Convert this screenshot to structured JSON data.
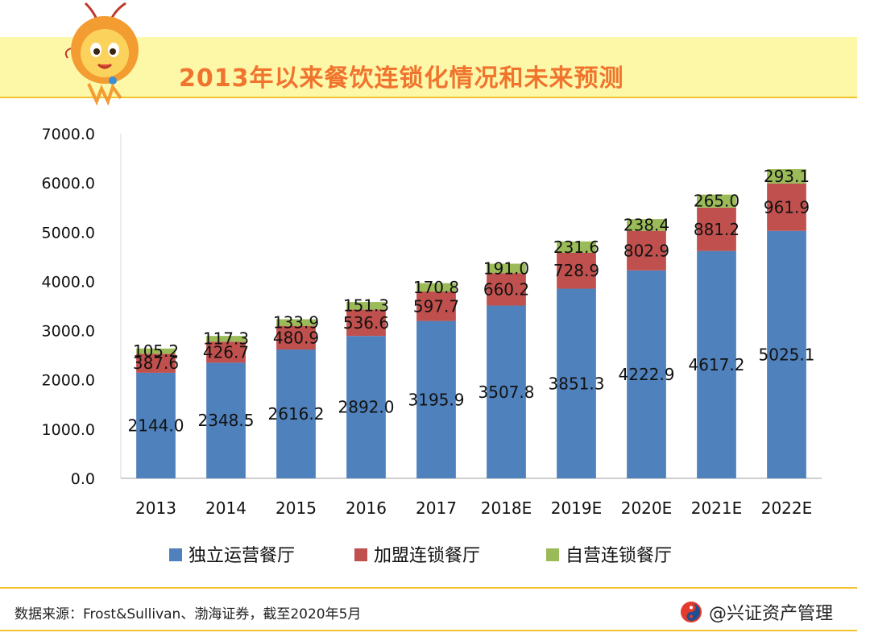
{
  "title": "2013年以来餐饮连锁化情况和未来预测",
  "source": "数据来源：Frost&Sullivan、渤海证券，截至2020年5月",
  "brand": "@兴证资产管理",
  "icons": {
    "mascot": "lion-mascot-icon",
    "brand_logo": "brand-logo-icon"
  },
  "colors": {
    "independent": "#4f81bd",
    "franchise": "#c0504d",
    "self_operated": "#9bbb59",
    "title": "#f0742e",
    "band": "#fdf7a8",
    "rule": "#f2c230"
  },
  "chart_data": {
    "type": "bar",
    "stacked": true,
    "title": "2013年以来餐饮连锁化情况和未来预测",
    "xlabel": "",
    "ylabel": "",
    "ylim": [
      0,
      7000
    ],
    "yticks": [
      "0.0",
      "1000.0",
      "2000.0",
      "3000.0",
      "4000.0",
      "5000.0",
      "6000.0",
      "7000.0"
    ],
    "categories": [
      "2013",
      "2014",
      "2015",
      "2016",
      "2017",
      "2018E",
      "2019E",
      "2020E",
      "2021E",
      "2022E"
    ],
    "legend_position": "bottom",
    "series": [
      {
        "name": "独立运营餐厅",
        "values": [
          2144.0,
          2348.5,
          2616.2,
          2892.0,
          3195.9,
          3507.8,
          3851.3,
          4222.9,
          4617.2,
          5025.1
        ],
        "labels": [
          "2144.0",
          "2348.5",
          "2616.2",
          "2892.0",
          "3195.9",
          "3507.8",
          "3851.3",
          "4222.9",
          "4617.2",
          "5025.1"
        ]
      },
      {
        "name": "加盟连锁餐厅",
        "values": [
          387.6,
          426.7,
          480.9,
          536.6,
          597.7,
          660.2,
          728.9,
          802.9,
          881.2,
          961.9
        ],
        "labels": [
          "387.6",
          "426.7",
          "480.9",
          "536.6",
          "597.7",
          "660.2",
          "728.9",
          "802.9",
          "881.2",
          "961.9"
        ]
      },
      {
        "name": "自营连锁餐厅",
        "values": [
          105.2,
          117.3,
          133.9,
          151.3,
          170.8,
          191.0,
          231.6,
          238.4,
          265.0,
          293.1
        ],
        "labels": [
          "105.2",
          "117.3",
          "133.9",
          "151.3",
          "170.8",
          "191.0",
          "231.6",
          "238.4",
          "265.0",
          "293.1"
        ]
      }
    ]
  }
}
